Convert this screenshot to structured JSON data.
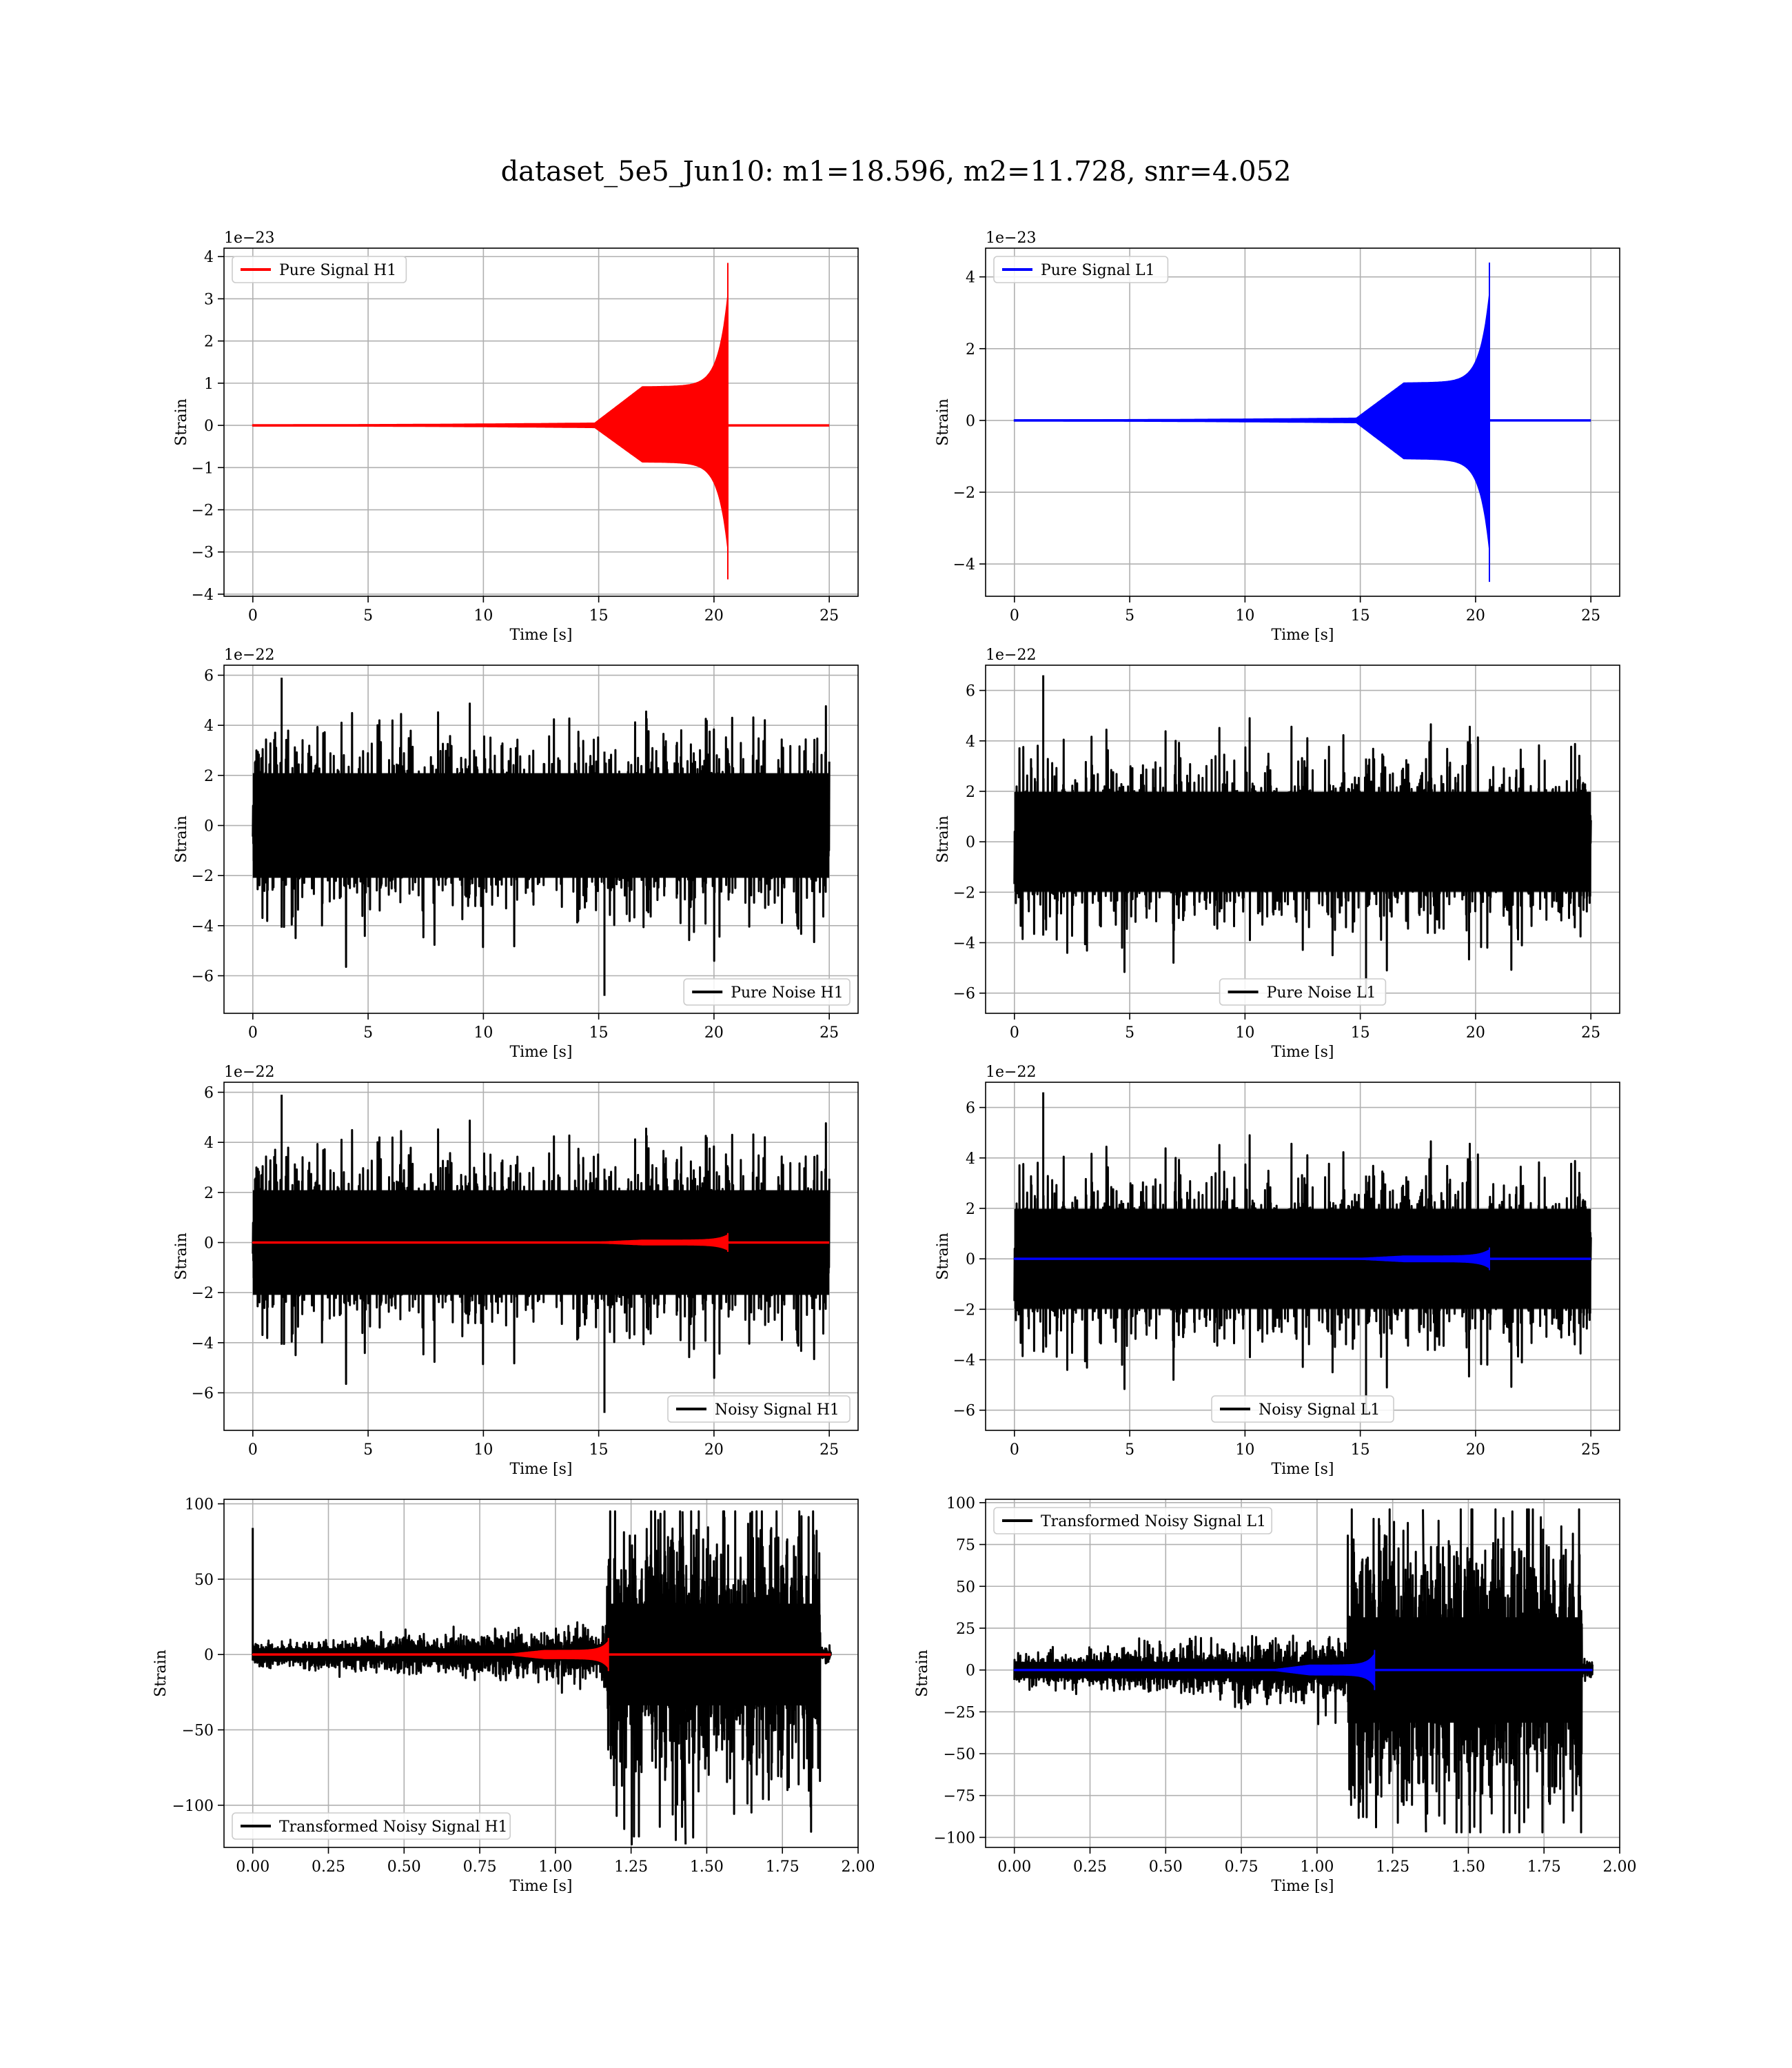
{
  "figure": {
    "title": "dataset_5e5_Jun10: m1=18.596, m2=11.728, snr=4.052"
  },
  "colors": {
    "h1": "#ff0000",
    "l1": "#0000ff",
    "noise": "#000000",
    "grid": "#b0b0b0"
  },
  "chart_data": [
    {
      "id": "pure-signal-h1",
      "type": "line",
      "xlabel": "Time [s]",
      "ylabel": "Strain",
      "offset_text": "1e−23",
      "xlim": [
        -1.25,
        26.25
      ],
      "ylim": [
        -4.05,
        4.2
      ],
      "xticks": [
        0,
        5,
        10,
        15,
        20,
        25
      ],
      "xtick_labels": [
        "0",
        "5",
        "10",
        "15",
        "20",
        "25"
      ],
      "yticks": [
        -4,
        -3,
        -2,
        -1,
        0,
        1,
        2,
        3,
        4
      ],
      "ytick_labels": [
        "−4",
        "−3",
        "−2",
        "−1",
        "0",
        "1",
        "2",
        "3",
        "4"
      ],
      "legend": {
        "loc": "upper-left"
      },
      "series": [
        {
          "name": "Pure Signal H1",
          "color": "#ff0000",
          "kind": "chirp",
          "t_start": 0,
          "t_merger": 20.6,
          "t_end": 25,
          "peak_pos": 3.85,
          "peak_neg": -3.65
        }
      ]
    },
    {
      "id": "pure-signal-l1",
      "type": "line",
      "xlabel": "Time [s]",
      "ylabel": "Strain",
      "offset_text": "1e−23",
      "xlim": [
        -1.25,
        26.25
      ],
      "ylim": [
        -4.9,
        4.8
      ],
      "xticks": [
        0,
        5,
        10,
        15,
        20,
        25
      ],
      "xtick_labels": [
        "0",
        "5",
        "10",
        "15",
        "20",
        "25"
      ],
      "yticks": [
        -4,
        -2,
        0,
        2,
        4
      ],
      "ytick_labels": [
        "−4",
        "−2",
        "0",
        "2",
        "4"
      ],
      "legend": {
        "loc": "upper-left"
      },
      "series": [
        {
          "name": "Pure Signal L1",
          "color": "#0000ff",
          "kind": "chirp",
          "t_start": 0,
          "t_merger": 20.6,
          "t_end": 25,
          "peak_pos": 4.4,
          "peak_neg": -4.5
        }
      ]
    },
    {
      "id": "pure-noise-h1",
      "type": "line",
      "xlabel": "Time [s]",
      "ylabel": "Strain",
      "offset_text": "1e−22",
      "xlim": [
        -1.25,
        26.25
      ],
      "ylim": [
        -7.5,
        6.4
      ],
      "xticks": [
        0,
        5,
        10,
        15,
        20,
        25
      ],
      "xtick_labels": [
        "0",
        "5",
        "10",
        "15",
        "20",
        "25"
      ],
      "yticks": [
        -6,
        -4,
        -2,
        0,
        2,
        4,
        6
      ],
      "ytick_labels": [
        "−6",
        "−4",
        "−2",
        "0",
        "2",
        "4",
        "6"
      ],
      "legend": {
        "loc": "lower-right"
      },
      "series": [
        {
          "name": "Pure Noise H1",
          "color": "#000000",
          "kind": "noise",
          "t_start": 0,
          "t_end": 25,
          "amp": 3.8,
          "max": 5.9,
          "min": -6.8,
          "seed": 11
        }
      ]
    },
    {
      "id": "pure-noise-l1",
      "type": "line",
      "xlabel": "Time [s]",
      "ylabel": "Strain",
      "offset_text": "1e−22",
      "xlim": [
        -1.25,
        26.25
      ],
      "ylim": [
        -6.8,
        7.0
      ],
      "xticks": [
        0,
        5,
        10,
        15,
        20,
        25
      ],
      "xtick_labels": [
        "0",
        "5",
        "10",
        "15",
        "20",
        "25"
      ],
      "yticks": [
        -6,
        -4,
        -2,
        0,
        2,
        4,
        6
      ],
      "ytick_labels": [
        "−6",
        "−4",
        "−2",
        "0",
        "2",
        "4",
        "6"
      ],
      "legend": {
        "loc": "lower-center"
      },
      "series": [
        {
          "name": "Pure Noise L1",
          "color": "#000000",
          "kind": "noise",
          "t_start": 0,
          "t_end": 25,
          "amp": 3.6,
          "max": 6.6,
          "min": -6.2,
          "seed": 23
        }
      ]
    },
    {
      "id": "noisy-signal-h1",
      "type": "line",
      "xlabel": "Time [s]",
      "ylabel": "Strain",
      "offset_text": "1e−22",
      "xlim": [
        -1.25,
        26.25
      ],
      "ylim": [
        -7.5,
        6.4
      ],
      "xticks": [
        0,
        5,
        10,
        15,
        20,
        25
      ],
      "xtick_labels": [
        "0",
        "5",
        "10",
        "15",
        "20",
        "25"
      ],
      "yticks": [
        -6,
        -4,
        -2,
        0,
        2,
        4,
        6
      ],
      "ytick_labels": [
        "−6",
        "−4",
        "−2",
        "0",
        "2",
        "4",
        "6"
      ],
      "legend": {
        "loc": "lower-right"
      },
      "series": [
        {
          "name": "Noisy Signal H1",
          "color": "#000000",
          "kind": "noise",
          "t_start": 0,
          "t_end": 25,
          "amp": 3.8,
          "max": 5.9,
          "min": -6.8,
          "seed": 11
        },
        {
          "color": "#ff0000",
          "kind": "chirp",
          "t_start": 0,
          "t_merger": 20.6,
          "t_end": 25,
          "peak_pos": 0.38,
          "peak_neg": -0.37
        }
      ]
    },
    {
      "id": "noisy-signal-l1",
      "type": "line",
      "xlabel": "Time [s]",
      "ylabel": "Strain",
      "offset_text": "1e−22",
      "xlim": [
        -1.25,
        26.25
      ],
      "ylim": [
        -6.8,
        7.0
      ],
      "xticks": [
        0,
        5,
        10,
        15,
        20,
        25
      ],
      "xtick_labels": [
        "0",
        "5",
        "10",
        "15",
        "20",
        "25"
      ],
      "yticks": [
        -6,
        -4,
        -2,
        0,
        2,
        4,
        6
      ],
      "ytick_labels": [
        "−6",
        "−4",
        "−2",
        "0",
        "2",
        "4",
        "6"
      ],
      "legend": {
        "loc": "lower-center"
      },
      "series": [
        {
          "name": "Noisy Signal L1",
          "color": "#000000",
          "kind": "noise",
          "t_start": 0,
          "t_end": 25,
          "amp": 3.6,
          "max": 6.6,
          "min": -6.2,
          "seed": 23
        },
        {
          "color": "#0000ff",
          "kind": "chirp",
          "t_start": 0,
          "t_merger": 20.6,
          "t_end": 25,
          "peak_pos": 0.45,
          "peak_neg": -0.45
        }
      ]
    },
    {
      "id": "transformed-h1",
      "type": "line",
      "xlabel": "Time [s]",
      "ylabel": "Strain",
      "offset_text": "",
      "xlim": [
        -0.095,
        2.0
      ],
      "ylim": [
        -128,
        103
      ],
      "xticks": [
        0.0,
        0.25,
        0.5,
        0.75,
        1.0,
        1.25,
        1.5,
        1.75,
        2.0
      ],
      "xtick_labels": [
        "0.00",
        "0.25",
        "0.50",
        "0.75",
        "1.00",
        "1.25",
        "1.50",
        "1.75",
        "2.00"
      ],
      "yticks": [
        -100,
        -50,
        0,
        50,
        100
      ],
      "ytick_labels": [
        "−100",
        "−50",
        "0",
        "50",
        "100"
      ],
      "legend": {
        "loc": "lower-left"
      },
      "series": [
        {
          "name": "Transformed Noisy Signal H1",
          "color": "#000000",
          "kind": "transformed",
          "t_start": 0,
          "t_end": 1.91,
          "t_jump": 1.17,
          "t_cut": 1.875,
          "amp_low": 6,
          "amp_high": 45,
          "max": 95,
          "min": -126,
          "spike": 84,
          "seed": 37
        },
        {
          "color": "#ff0000",
          "kind": "chirp",
          "t_start": 0,
          "t_merger": 1.175,
          "t_end": 1.91,
          "peak_pos": 11,
          "peak_neg": -11
        }
      ]
    },
    {
      "id": "transformed-l1",
      "type": "line",
      "xlabel": "Time [s]",
      "ylabel": "Strain",
      "offset_text": "",
      "xlim": [
        -0.095,
        2.0
      ],
      "ylim": [
        -106,
        102
      ],
      "xticks": [
        0.0,
        0.25,
        0.5,
        0.75,
        1.0,
        1.25,
        1.5,
        1.75,
        2.0
      ],
      "xtick_labels": [
        "0.00",
        "0.25",
        "0.50",
        "0.75",
        "1.00",
        "1.25",
        "1.50",
        "1.75",
        "2.00"
      ],
      "yticks": [
        -100,
        -75,
        -50,
        -25,
        0,
        25,
        50,
        75,
        100
      ],
      "ytick_labels": [
        "−100",
        "−75",
        "−50",
        "−25",
        "0",
        "25",
        "50",
        "75",
        "100"
      ],
      "legend": {
        "loc": "upper-left"
      },
      "series": [
        {
          "name": "Transformed Noisy Signal L1",
          "color": "#000000",
          "kind": "transformed",
          "t_start": 0,
          "t_end": 1.91,
          "t_jump": 1.1,
          "t_cut": 1.875,
          "amp_low": 7,
          "amp_high": 42,
          "max": 96,
          "min": -97,
          "spike": 0,
          "seed": 53
        },
        {
          "color": "#0000ff",
          "kind": "chirp",
          "t_start": 0,
          "t_merger": 1.19,
          "t_end": 1.91,
          "peak_pos": 12,
          "peak_neg": -12
        }
      ]
    }
  ]
}
